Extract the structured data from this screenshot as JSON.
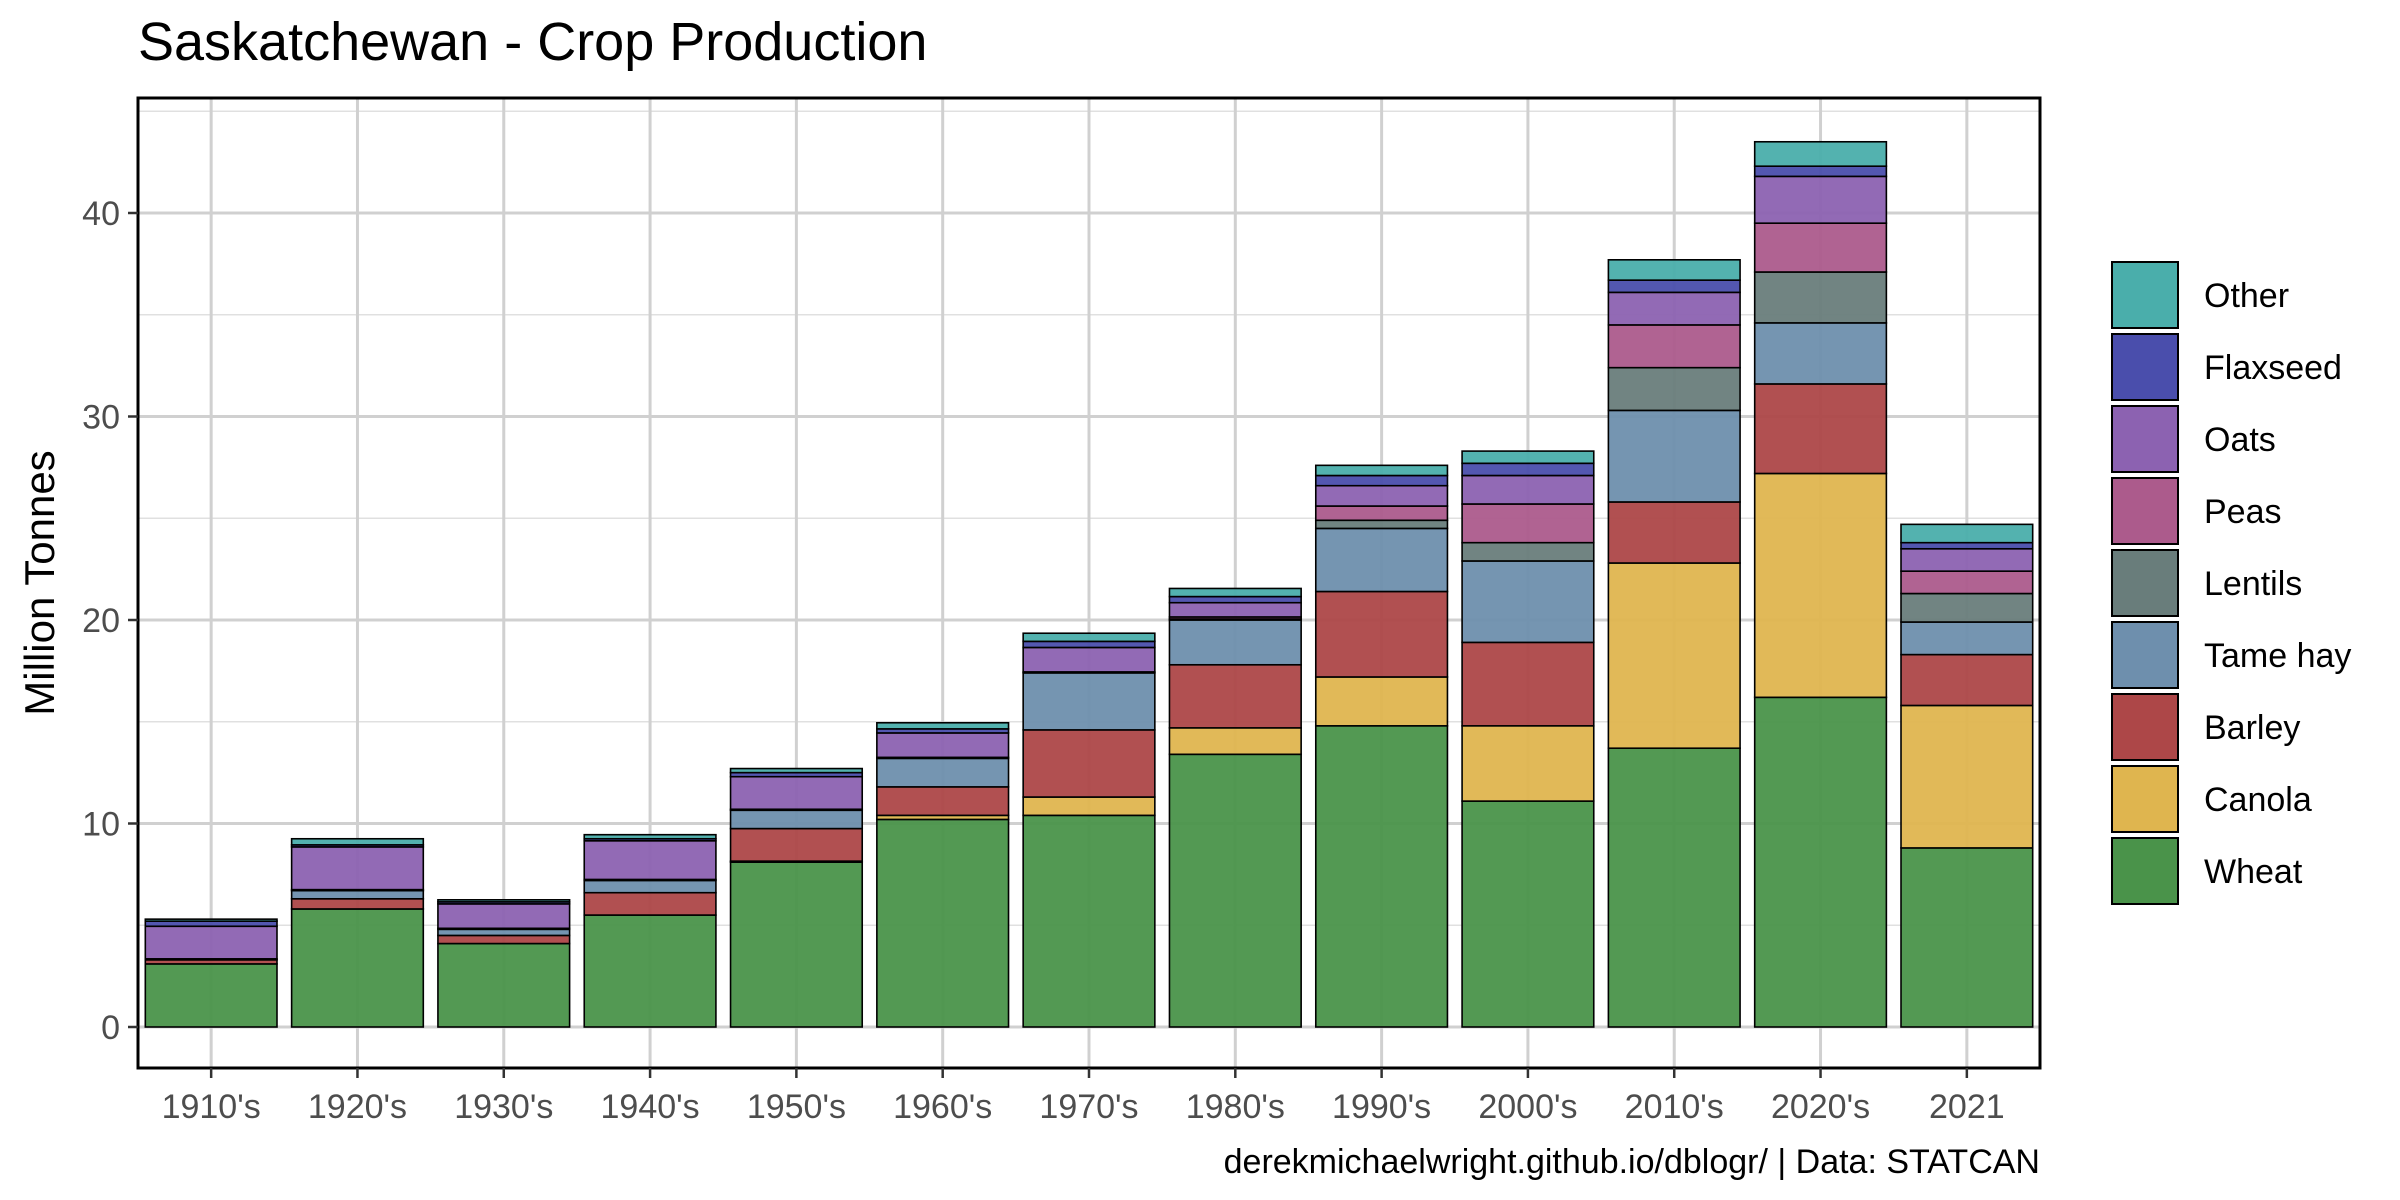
{
  "chart_data": {
    "type": "bar",
    "stacked": true,
    "title": "Saskatchewan - Crop Production",
    "ylabel": "Million Tonnes",
    "caption": "derekmichaelwright.github.io/dblogr/ | Data: STATCAN",
    "ylim": [
      0,
      45
    ],
    "yticks": [
      0,
      10,
      20,
      30,
      40
    ],
    "grid": true,
    "legend_position": "right",
    "categories": [
      "1910's",
      "1920's",
      "1930's",
      "1940's",
      "1950's",
      "1960's",
      "1970's",
      "1980's",
      "1990's",
      "2000's",
      "2010's",
      "2020's",
      "2021"
    ],
    "series": [
      {
        "name": "Wheat",
        "color": "#4a934a",
        "values": [
          3.1,
          5.8,
          4.1,
          5.5,
          8.1,
          10.2,
          10.4,
          13.4,
          14.8,
          11.1,
          13.7,
          16.2,
          8.8
        ]
      },
      {
        "name": "Canola",
        "color": "#dfb54f",
        "values": [
          0.0,
          0.0,
          0.0,
          0.0,
          0.05,
          0.2,
          0.9,
          1.3,
          2.4,
          3.7,
          9.1,
          11.0,
          7.0
        ]
      },
      {
        "name": "Barley",
        "color": "#ad4748",
        "values": [
          0.2,
          0.5,
          0.4,
          1.1,
          1.6,
          1.4,
          3.3,
          3.1,
          4.2,
          4.1,
          3.0,
          4.4,
          2.5
        ]
      },
      {
        "name": "Tame hay",
        "color": "#6e8fad",
        "values": [
          0.0,
          0.4,
          0.3,
          0.6,
          0.9,
          1.4,
          2.8,
          2.2,
          3.1,
          4.0,
          4.5,
          3.0,
          1.6
        ]
      },
      {
        "name": "Lentils",
        "color": "#697d7b",
        "values": [
          0.0,
          0.0,
          0.0,
          0.0,
          0.0,
          0.0,
          0.0,
          0.05,
          0.4,
          0.9,
          2.1,
          2.5,
          1.4
        ]
      },
      {
        "name": "Peas",
        "color": "#ac5b8c",
        "values": [
          0.05,
          0.05,
          0.05,
          0.05,
          0.05,
          0.05,
          0.05,
          0.1,
          0.7,
          1.9,
          2.1,
          2.4,
          1.1
        ]
      },
      {
        "name": "Oats",
        "color": "#8c62b1",
        "values": [
          1.6,
          2.1,
          1.2,
          1.9,
          1.6,
          1.2,
          1.2,
          0.7,
          1.0,
          1.4,
          1.6,
          2.3,
          1.1
        ]
      },
      {
        "name": "Flaxseed",
        "color": "#4a4eac",
        "values": [
          0.25,
          0.1,
          0.1,
          0.1,
          0.2,
          0.2,
          0.3,
          0.3,
          0.5,
          0.6,
          0.6,
          0.5,
          0.3
        ]
      },
      {
        "name": "Other",
        "color": "#4aaeab",
        "values": [
          0.1,
          0.3,
          0.1,
          0.2,
          0.2,
          0.3,
          0.4,
          0.4,
          0.5,
          0.6,
          1.0,
          1.2,
          0.9
        ]
      }
    ]
  }
}
